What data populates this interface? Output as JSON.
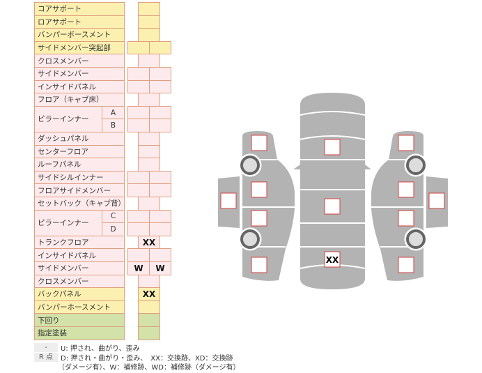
{
  "rows": [
    {
      "label": "コアサポート",
      "color": "yellow",
      "cells": "single",
      "values": [
        ""
      ]
    },
    {
      "label": "ロアサポート",
      "color": "yellow",
      "cells": "single",
      "values": [
        ""
      ]
    },
    {
      "label": "バンパーボースメント",
      "color": "yellow",
      "cells": "single",
      "values": [
        ""
      ]
    },
    {
      "label": "サイドメンバー突起部",
      "color": "yellow",
      "cells": "double",
      "values": [
        "",
        ""
      ]
    },
    {
      "label": "クロスメンバー",
      "color": "pink",
      "cells": "single",
      "values": [
        ""
      ]
    },
    {
      "label": "サイドメンバー",
      "color": "pink",
      "cells": "double",
      "values": [
        "",
        ""
      ]
    },
    {
      "label": "インサイドパネル",
      "color": "pink",
      "cells": "double",
      "values": [
        "",
        ""
      ]
    },
    {
      "label": "フロア（キャブ床）",
      "color": "pink",
      "cells": "single",
      "values": [
        ""
      ]
    },
    {
      "label": "ピラーインナー",
      "sub": "A",
      "color": "pink",
      "cells": "double",
      "values": [
        "",
        ""
      ],
      "span": 2
    },
    {
      "sub": "B",
      "color": "pink",
      "cells": "double",
      "values": [
        "",
        ""
      ]
    },
    {
      "label": "ダッシュパネル",
      "color": "pink",
      "cells": "single",
      "values": [
        ""
      ]
    },
    {
      "label": "センターフロア",
      "color": "pink",
      "cells": "single",
      "values": [
        ""
      ]
    },
    {
      "label": "ルーフパネル",
      "color": "pink",
      "cells": "single",
      "values": [
        ""
      ]
    },
    {
      "label": "サイドシルインナー",
      "color": "pink",
      "cells": "double",
      "values": [
        "",
        ""
      ]
    },
    {
      "label": "フロアサイドメンバー",
      "color": "pink",
      "cells": "double",
      "values": [
        "",
        ""
      ]
    },
    {
      "label": "セットバック（キャブ背）",
      "color": "pink",
      "cells": "single",
      "values": [
        ""
      ]
    },
    {
      "label": "ピラーインナー",
      "sub": "C",
      "color": "pink",
      "cells": "double",
      "values": [
        "",
        ""
      ],
      "span": 2
    },
    {
      "sub": "D",
      "color": "pink",
      "cells": "double",
      "values": [
        "",
        ""
      ]
    },
    {
      "label": "トランクフロア",
      "color": "pink",
      "cells": "single",
      "values": [
        "XX"
      ]
    },
    {
      "label": "インサイドパネル",
      "color": "pink",
      "cells": "double",
      "values": [
        "",
        ""
      ]
    },
    {
      "label": "サイドメンバー",
      "color": "pink",
      "cells": "double",
      "values": [
        "W",
        "W"
      ]
    },
    {
      "label": "クロスメンバー",
      "color": "pink",
      "cells": "single",
      "values": [
        ""
      ]
    },
    {
      "label": "バックパネル",
      "color": "yellow",
      "cells": "single",
      "values": [
        "XX"
      ]
    },
    {
      "label": "バンパーホースメント",
      "color": "yellow",
      "cells": "single",
      "values": [
        ""
      ]
    },
    {
      "label": "下回り",
      "color": "green",
      "cells": "single",
      "values": [
        ""
      ]
    },
    {
      "label": "指定塗装",
      "color": "green",
      "cells": "single",
      "values": [
        ""
      ]
    }
  ],
  "diagram": {
    "center_rear_mark": "XX"
  },
  "legend": {
    "key1": "-",
    "text1": "U: 押され、曲がり、歪み",
    "key2": "R 点",
    "text2": "D: 押され・曲がり・歪み、　XX：交換跡、XD：交換跡",
    "text3": "（ダメージ有）、W：補修跡、WD：補修跡（ダメージ有）"
  },
  "colors": {
    "yellow": "#fcf0b0",
    "pink": "#fdeaec",
    "green": "#d2e2a8",
    "body": "#b3b3b3",
    "mark_border": "#d04040"
  }
}
